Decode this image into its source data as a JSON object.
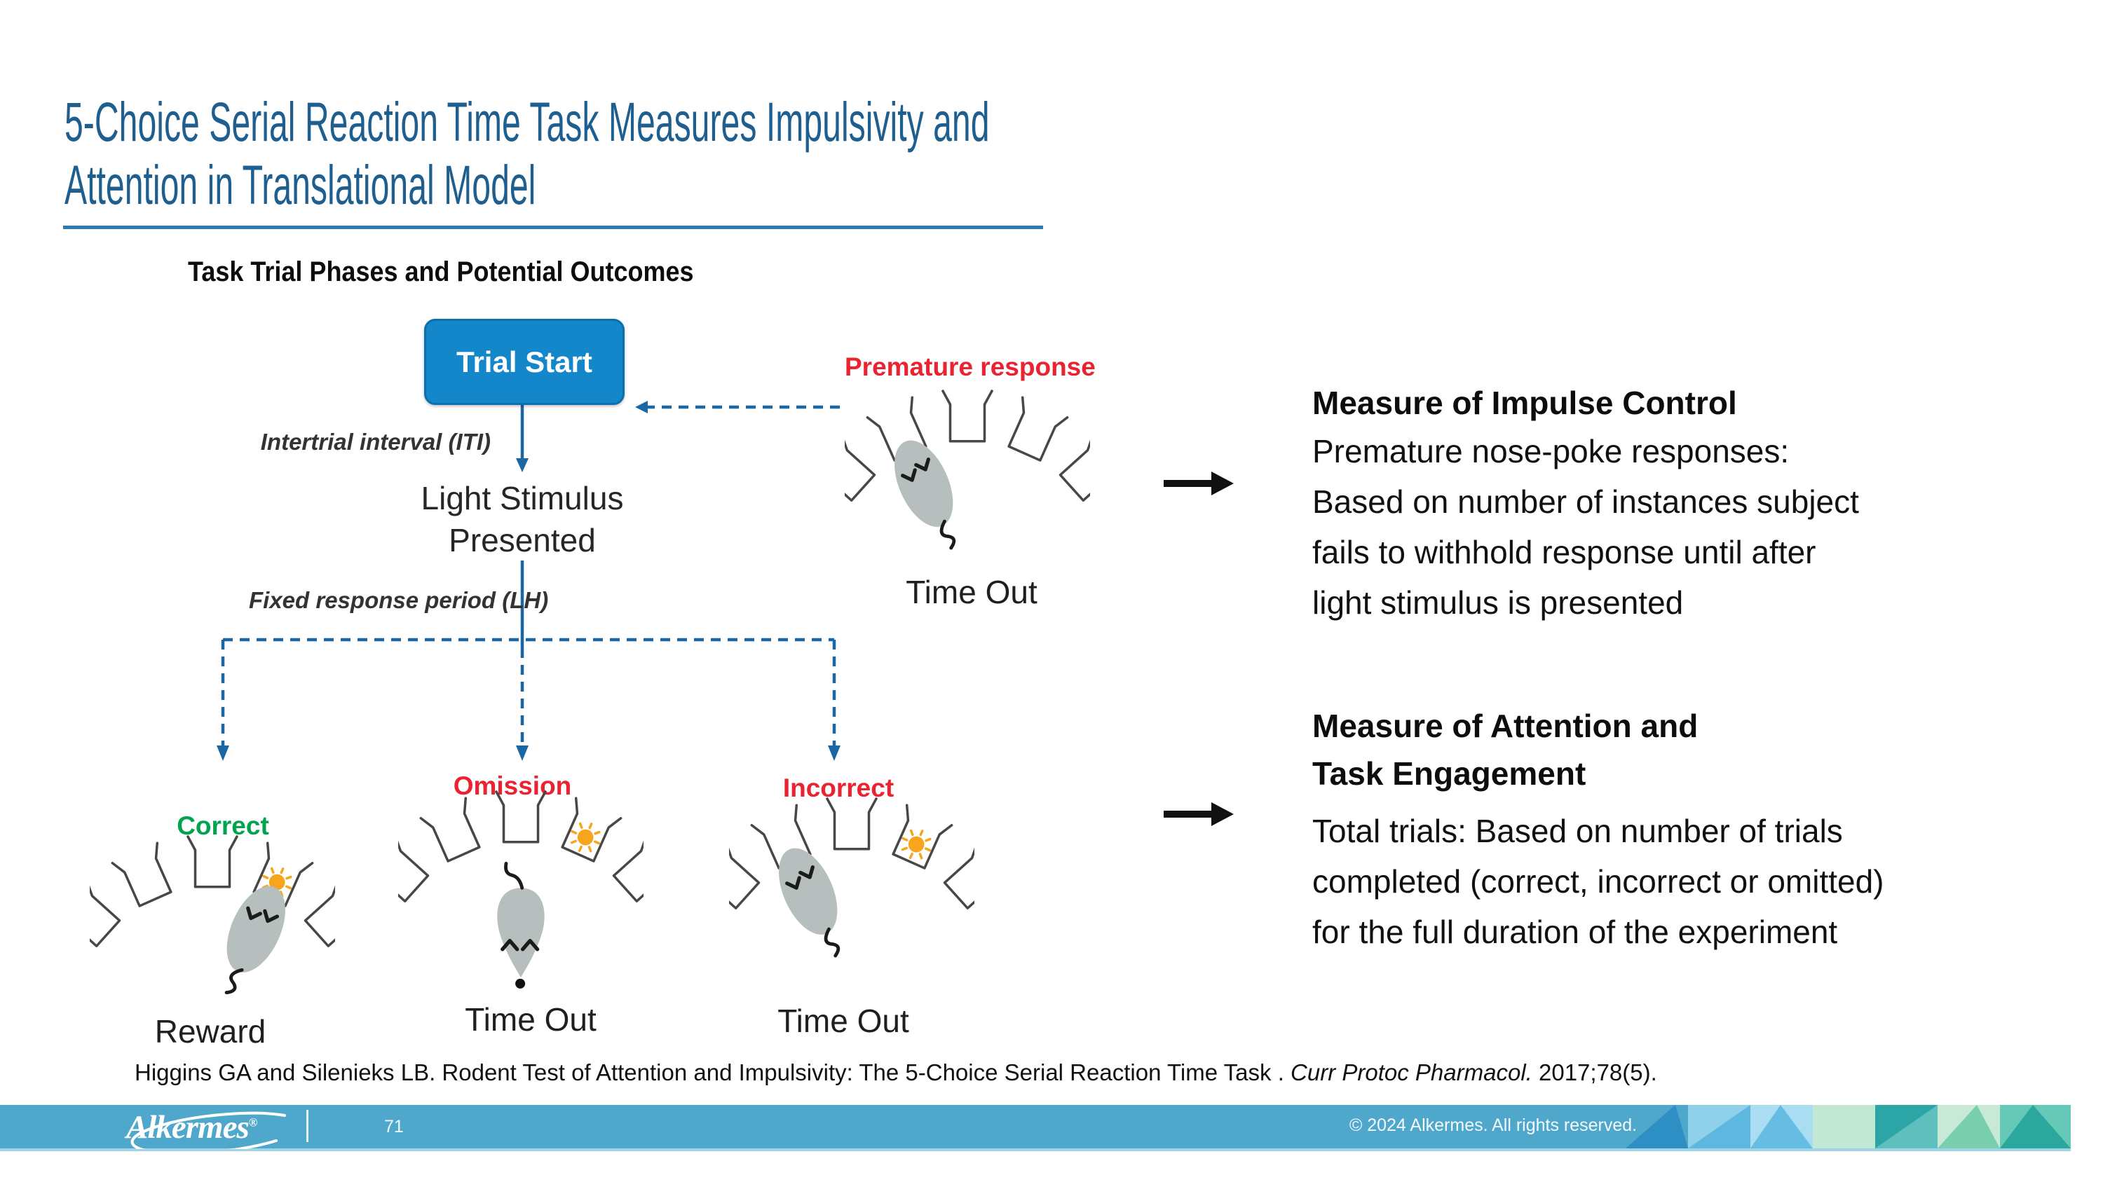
{
  "slide": {
    "title_line1": "5-Choice Serial Reaction Time Task Measures Impulsivity and",
    "title_line2": "Attention in Translational Model",
    "section_heading": "Task Trial Phases and Potential Outcomes"
  },
  "diagram": {
    "trial_start_label": "Trial Start",
    "iti_label": "Intertrial interval (ITI)",
    "light_stimulus": "Light Stimulus\nPresented",
    "lh_label": "Fixed response period (LH)",
    "scenes": {
      "premature": {
        "label": "Premature response",
        "outcome": "Time Out",
        "light_hole": null,
        "mouse": "poke",
        "mouse_hole": 1
      },
      "correct": {
        "label": "Correct",
        "outcome": "Reward",
        "light_hole": 3,
        "mouse": "poke",
        "mouse_hole": 3
      },
      "omission": {
        "label": "Omission",
        "outcome": "Time Out",
        "light_hole": 3,
        "mouse": "away"
      },
      "incorrect": {
        "label": "Incorrect",
        "outcome": "Time Out",
        "light_hole": 3,
        "mouse": "poke",
        "mouse_hole": 1
      }
    }
  },
  "annotations": {
    "impulse": {
      "heading": "Measure of Impulse Control",
      "body": "Premature nose-poke responses:\nBased on number of instances subject\nfails to withhold response until after\nlight stimulus is presented"
    },
    "attention": {
      "heading": "Measure of Attention and\nTask Engagement",
      "body": "Total trials: Based on number of trials\ncompleted (correct, incorrect or omitted)\nfor the full duration of the experiment"
    }
  },
  "citation": {
    "plain1": "Higgins GA and Silenieks LB. Rodent Test of Attention and Impulsivity: The 5-Choice Serial Reaction Time Task . ",
    "italic": "Curr Protoc Pharmacol.",
    "plain2": " 2017;78(5)."
  },
  "footer": {
    "logo_text": "Alkermes",
    "logo_reg": "®",
    "page_number": "71",
    "copyright": "© 2024 Alkermes. All rights reserved."
  },
  "colors": {
    "title_blue": "#1E5F90",
    "rule_blue": "#2F7AB0",
    "flow_blue": "#1A67A3",
    "box_blue": "#1486CA",
    "box_border": "#0C6FAE",
    "label_red": "#EA2330",
    "label_green": "#00A44F",
    "sun_orange": "#F6A51C",
    "mouse_gray": "#B7BEBE",
    "wall_gray": "#474747",
    "footer_bar": "#4FA7CB",
    "footer_edge": "#9FD4E8",
    "triangle_palette": [
      "#2E8FC5",
      "#5EB7DE",
      "#8FD0EA",
      "#AADCF2",
      "#66BCE2",
      "#C3E7D5",
      "#2BA5A6",
      "#5FBFBD",
      "#C8E9D6",
      "#79CEB0",
      "#66C9B8",
      "#2AA89E"
    ]
  }
}
